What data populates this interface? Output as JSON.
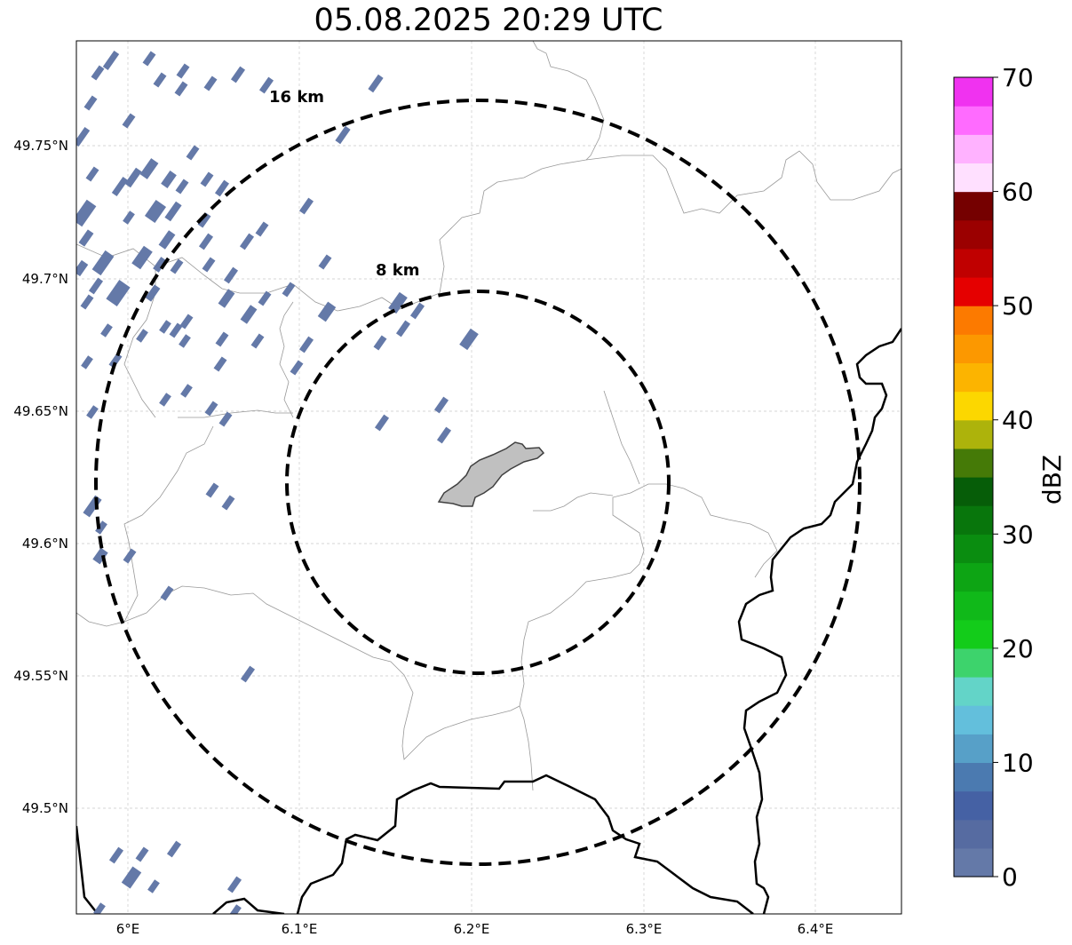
{
  "title": "05.08.2025 20:29 UTC",
  "map": {
    "lat_ticks": [
      "49.75°N",
      "49.7°N",
      "49.65°N",
      "49.6°N",
      "49.55°N",
      "49.5°N"
    ],
    "lon_ticks": [
      "6°E",
      "6.1°E",
      "6.2°E",
      "6.3°E",
      "6.4°E"
    ],
    "rings": [
      {
        "label": "8 km",
        "radius_km": 8
      },
      {
        "label": "16 km",
        "radius_km": 16
      }
    ],
    "echo_color": "#6479a8",
    "city_fill": "#c0c0c0"
  },
  "colorbar": {
    "title": "dBZ",
    "tick_labels": [
      "0",
      "10",
      "20",
      "30",
      "40",
      "50",
      "60",
      "70"
    ],
    "colors": [
      "#6479a8",
      "#566ba1",
      "#4561a4",
      "#4b7ab0",
      "#57a0c8",
      "#63bfdc",
      "#63d4c8",
      "#3dd36c",
      "#13cc1a",
      "#10b919",
      "#0da514",
      "#0a8d10",
      "#08760c",
      "#065d08",
      "#457a07",
      "#adb30b",
      "#fcd700",
      "#fcb400",
      "#fc9800",
      "#fc7a00",
      "#e50000",
      "#c00000",
      "#9b0000",
      "#750000",
      "#ffe0ff",
      "#ffb2ff",
      "#ff6bff",
      "#f032f0"
    ]
  }
}
